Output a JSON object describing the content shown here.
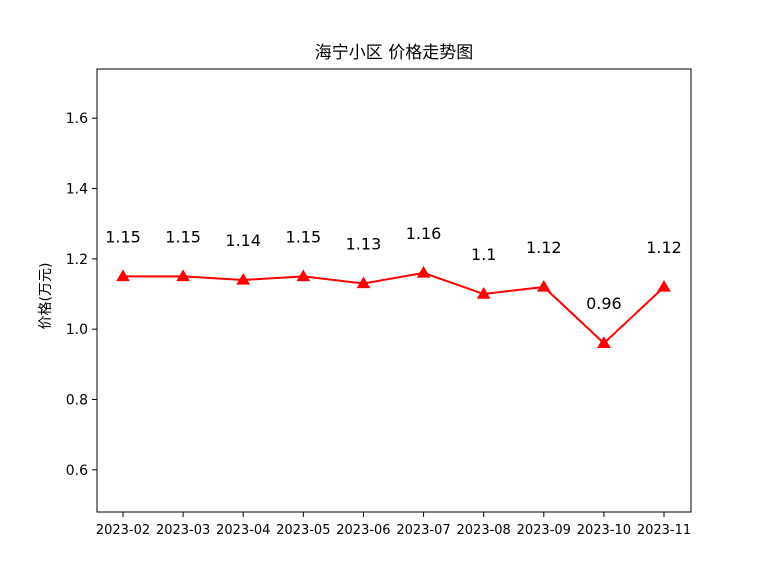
{
  "chart_data": {
    "type": "line",
    "title": "海宁小区 价格走势图",
    "xlabel": "",
    "ylabel": "价格(万元)",
    "categories": [
      "2023-02",
      "2023-03",
      "2023-04",
      "2023-05",
      "2023-06",
      "2023-07",
      "2023-08",
      "2023-09",
      "2023-10",
      "2023-11"
    ],
    "series": [
      {
        "values": [
          1.15,
          1.15,
          1.14,
          1.15,
          1.13,
          1.16,
          1.1,
          1.12,
          0.96,
          1.12
        ],
        "color": "#ff0000",
        "marker": "triangle"
      }
    ],
    "data_labels": [
      "1.15",
      "1.15",
      "1.14",
      "1.15",
      "1.13",
      "1.16",
      "1.1",
      "1.12",
      "0.96",
      "1.12"
    ],
    "ylim": [
      0.48,
      1.74
    ],
    "yticks": [
      0.6,
      0.8,
      1.0,
      1.2,
      1.4,
      1.6
    ],
    "ytick_labels": [
      "0.6",
      "0.8",
      "1.0",
      "1.2",
      "1.4",
      "1.6"
    ],
    "grid": false,
    "legend": "none"
  }
}
